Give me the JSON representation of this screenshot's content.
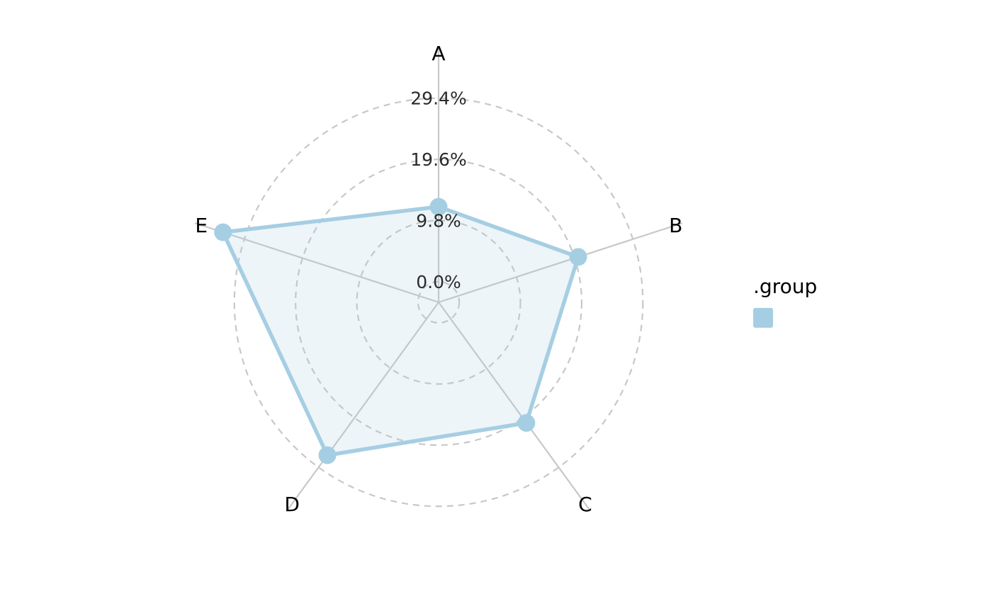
{
  "chart_data": {
    "type": "radar",
    "categories": [
      "A",
      "B",
      "C",
      "D",
      "E"
    ],
    "series": [
      {
        "values": [
          12.0,
          20.2,
          20.6,
          27.0,
          33.0
        ]
      }
    ],
    "range": [
      -3.3,
      33.0
    ],
    "grid_levels": [
      0.0,
      9.8,
      19.6,
      29.4
    ],
    "grid_labels": [
      "0.0%",
      "9.8%",
      "19.6%",
      "29.4%"
    ],
    "grid_style": "dashed",
    "legend": {
      "title": ".group",
      "position": "right"
    },
    "colors": {
      "series": "#a6cee3",
      "grid": "#c8c8c8",
      "spoke": "#c8c8c8"
    }
  }
}
